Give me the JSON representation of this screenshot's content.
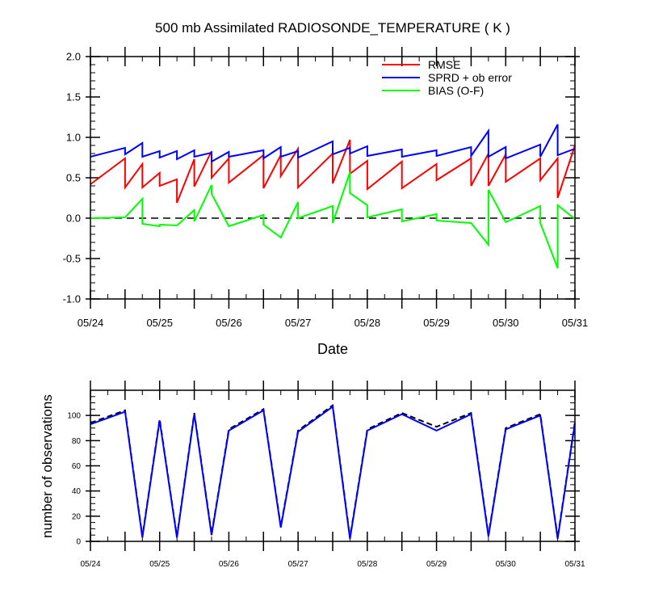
{
  "chart_data": [
    {
      "type": "line",
      "title": "500 mb Assimilated RADIOSONDE_TEMPERATURE ( K )",
      "xlabel": "Date",
      "ylabel": "",
      "xlim": [
        0,
        7
      ],
      "ylim": [
        -1.0,
        2.0
      ],
      "x_tick_labels": [
        "05/24",
        "05/25",
        "05/26",
        "05/27",
        "05/28",
        "05/29",
        "05/30",
        "05/31"
      ],
      "y_tick_labels": [
        "-1.0",
        "-0.5",
        "0.0",
        "0.5",
        "1.0",
        "1.5",
        "2.0"
      ],
      "legend_position": "top-right",
      "reference_line": {
        "y": 0.0,
        "style": "dashed"
      },
      "series": [
        {
          "name": "RMSE",
          "color": "#ff0000",
          "points": [
            [
              0.0,
              0.42
            ],
            [
              0.5,
              0.74
            ],
            [
              0.5,
              0.38
            ],
            [
              0.75,
              0.67
            ],
            [
              0.75,
              0.38
            ],
            [
              1.0,
              0.56
            ],
            [
              1.0,
              0.4
            ],
            [
              1.25,
              0.48
            ],
            [
              1.25,
              0.19
            ],
            [
              1.5,
              0.73
            ],
            [
              1.5,
              0.39
            ],
            [
              1.75,
              0.83
            ],
            [
              1.75,
              0.5
            ],
            [
              2.0,
              0.74
            ],
            [
              2.0,
              0.44
            ],
            [
              2.5,
              0.78
            ],
            [
              2.5,
              0.37
            ],
            [
              2.75,
              0.78
            ],
            [
              2.75,
              0.52
            ],
            [
              3.0,
              0.86
            ],
            [
              3.0,
              0.38
            ],
            [
              3.5,
              0.8
            ],
            [
              3.5,
              0.43
            ],
            [
              3.75,
              0.97
            ],
            [
              3.75,
              0.55
            ],
            [
              4.0,
              0.71
            ],
            [
              4.0,
              0.36
            ],
            [
              4.5,
              0.7
            ],
            [
              4.5,
              0.37
            ],
            [
              5.0,
              0.67
            ],
            [
              5.0,
              0.47
            ],
            [
              5.5,
              0.74
            ],
            [
              5.5,
              0.4
            ],
            [
              5.75,
              0.8
            ],
            [
              5.75,
              0.4
            ],
            [
              6.0,
              0.79
            ],
            [
              6.0,
              0.45
            ],
            [
              6.5,
              0.74
            ],
            [
              6.5,
              0.47
            ],
            [
              6.75,
              0.74
            ],
            [
              6.75,
              0.25
            ],
            [
              7.0,
              0.9
            ]
          ]
        },
        {
          "name": "SPRD + ob error",
          "color": "#0000ff",
          "points": [
            [
              0.0,
              0.76
            ],
            [
              0.5,
              0.87
            ],
            [
              0.5,
              0.79
            ],
            [
              0.75,
              0.93
            ],
            [
              0.75,
              0.76
            ],
            [
              1.0,
              0.83
            ],
            [
              1.0,
              0.75
            ],
            [
              1.25,
              0.83
            ],
            [
              1.25,
              0.73
            ],
            [
              1.5,
              0.84
            ],
            [
              1.5,
              0.76
            ],
            [
              1.75,
              0.81
            ],
            [
              1.75,
              0.7
            ],
            [
              2.0,
              0.82
            ],
            [
              2.0,
              0.76
            ],
            [
              2.5,
              0.84
            ],
            [
              2.5,
              0.74
            ],
            [
              2.75,
              0.88
            ],
            [
              2.75,
              0.76
            ],
            [
              3.0,
              0.83
            ],
            [
              3.0,
              0.75
            ],
            [
              3.5,
              0.95
            ],
            [
              3.5,
              0.79
            ],
            [
              3.75,
              0.87
            ],
            [
              3.75,
              0.8
            ],
            [
              4.0,
              0.89
            ],
            [
              4.0,
              0.77
            ],
            [
              4.5,
              0.85
            ],
            [
              4.5,
              0.76
            ],
            [
              5.0,
              0.84
            ],
            [
              5.0,
              0.77
            ],
            [
              5.5,
              0.88
            ],
            [
              5.5,
              0.77
            ],
            [
              5.75,
              1.08
            ],
            [
              5.75,
              0.76
            ],
            [
              6.0,
              0.88
            ],
            [
              6.0,
              0.74
            ],
            [
              6.5,
              0.91
            ],
            [
              6.5,
              0.76
            ],
            [
              6.75,
              1.16
            ],
            [
              6.75,
              0.78
            ],
            [
              7.0,
              0.86
            ]
          ]
        },
        {
          "name": "BIAS (O-F)",
          "color": "#00ff00",
          "points": [
            [
              0.0,
              0.0
            ],
            [
              0.5,
              0.01
            ],
            [
              0.75,
              0.24
            ],
            [
              0.75,
              -0.07
            ],
            [
              1.0,
              -0.1
            ],
            [
              1.0,
              -0.08
            ],
            [
              1.25,
              -0.09
            ],
            [
              1.5,
              0.1
            ],
            [
              1.5,
              -0.04
            ],
            [
              1.75,
              0.41
            ],
            [
              1.75,
              0.3
            ],
            [
              2.0,
              -0.1
            ],
            [
              2.5,
              0.04
            ],
            [
              2.5,
              -0.08
            ],
            [
              2.75,
              -0.24
            ],
            [
              3.0,
              0.2
            ],
            [
              3.0,
              0.0
            ],
            [
              3.5,
              0.15
            ],
            [
              3.5,
              -0.06
            ],
            [
              3.75,
              0.57
            ],
            [
              3.75,
              0.31
            ],
            [
              4.0,
              0.16
            ],
            [
              4.0,
              0.01
            ],
            [
              4.5,
              0.11
            ],
            [
              4.5,
              -0.04
            ],
            [
              5.0,
              0.05
            ],
            [
              5.0,
              -0.03
            ],
            [
              5.5,
              -0.06
            ],
            [
              5.75,
              -0.33
            ],
            [
              5.75,
              0.35
            ],
            [
              6.0,
              -0.05
            ],
            [
              6.5,
              0.15
            ],
            [
              6.5,
              -0.06
            ],
            [
              6.75,
              -0.62
            ],
            [
              6.75,
              0.16
            ],
            [
              7.0,
              -0.01
            ]
          ]
        }
      ]
    },
    {
      "type": "line",
      "title": "",
      "xlabel": "",
      "ylabel": "number of observations",
      "xlim": [
        0,
        7
      ],
      "ylim": [
        0,
        120
      ],
      "x_tick_labels": [
        "05/24",
        "05/25",
        "05/26",
        "05/27",
        "05/28",
        "05/29",
        "05/30",
        "05/31"
      ],
      "y_tick_labels": [
        "0",
        "20",
        "40",
        "60",
        "80",
        "100"
      ],
      "series": [
        {
          "style": "dashed",
          "color": "#000000",
          "points": [
            [
              0.0,
              94
            ],
            [
              0.5,
              104
            ],
            [
              0.75,
              4
            ],
            [
              1.0,
              97
            ],
            [
              1.25,
              4
            ],
            [
              1.5,
              102
            ],
            [
              1.75,
              6
            ],
            [
              2.0,
              89
            ],
            [
              2.5,
              105
            ],
            [
              2.75,
              12
            ],
            [
              3.0,
              88
            ],
            [
              3.5,
              108
            ],
            [
              3.75,
              3
            ],
            [
              4.0,
              89
            ],
            [
              4.5,
              102
            ],
            [
              5.0,
              91
            ],
            [
              5.5,
              102
            ],
            [
              5.75,
              5
            ],
            [
              6.0,
              90
            ],
            [
              6.5,
              101
            ],
            [
              6.75,
              3
            ],
            [
              7.0,
              95
            ]
          ]
        },
        {
          "style": "solid",
          "color": "#0000ff",
          "points": [
            [
              0.0,
              93
            ],
            [
              0.5,
              103
            ],
            [
              0.75,
              3
            ],
            [
              1.0,
              96
            ],
            [
              1.25,
              3
            ],
            [
              1.5,
              101
            ],
            [
              1.75,
              5
            ],
            [
              2.0,
              88
            ],
            [
              2.5,
              104
            ],
            [
              2.75,
              11
            ],
            [
              3.0,
              87
            ],
            [
              3.5,
              107
            ],
            [
              3.75,
              2
            ],
            [
              4.0,
              88
            ],
            [
              4.5,
              101
            ],
            [
              5.0,
              88
            ],
            [
              5.5,
              101
            ],
            [
              5.75,
              4
            ],
            [
              6.0,
              89
            ],
            [
              6.5,
              100
            ],
            [
              6.75,
              2
            ],
            [
              7.0,
              94
            ]
          ]
        }
      ]
    }
  ]
}
